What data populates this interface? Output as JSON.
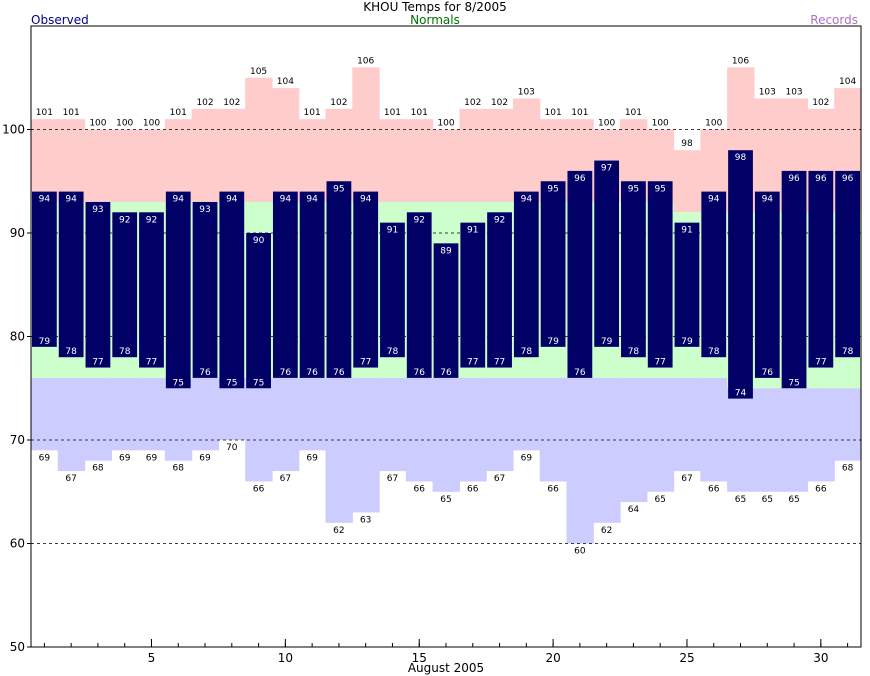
{
  "chart_data": {
    "type": "bar",
    "title": "KHOU Temps for 8/2005",
    "legend": {
      "observed": "Observed",
      "normals": "Normals",
      "records": "Records"
    },
    "xlabel": "August 2005",
    "ylabel": "",
    "ylim": [
      50,
      110
    ],
    "yticks": [
      50,
      60,
      70,
      80,
      90,
      100
    ],
    "xlim": [
      0.5,
      31.5
    ],
    "xticks": [
      5,
      10,
      15,
      20,
      25,
      30
    ],
    "grid": "dashed horizontal at 60, 70, 80, 90, 100",
    "days": [
      1,
      2,
      3,
      4,
      5,
      6,
      7,
      8,
      9,
      10,
      11,
      12,
      13,
      14,
      15,
      16,
      17,
      18,
      19,
      20,
      21,
      22,
      23,
      24,
      25,
      26,
      27,
      28,
      29,
      30,
      31
    ],
    "observed_high": [
      94,
      94,
      93,
      92,
      92,
      94,
      93,
      94,
      90,
      94,
      94,
      95,
      94,
      91,
      92,
      89,
      91,
      92,
      94,
      95,
      96,
      97,
      95,
      95,
      91,
      94,
      98,
      94,
      96,
      96,
      96
    ],
    "observed_low": [
      79,
      78,
      77,
      78,
      77,
      75,
      76,
      75,
      75,
      76,
      76,
      76,
      77,
      78,
      76,
      76,
      77,
      77,
      78,
      79,
      76,
      79,
      78,
      77,
      79,
      78,
      74,
      76,
      75,
      77,
      78
    ],
    "normal_high": [
      93,
      93,
      93,
      93,
      93,
      93,
      93,
      93,
      93,
      93,
      93,
      93,
      93,
      93,
      93,
      93,
      93,
      93,
      93,
      93,
      93,
      93,
      93,
      93,
      92,
      92,
      92,
      92,
      92,
      92,
      92
    ],
    "normal_low": [
      76,
      76,
      76,
      76,
      76,
      76,
      76,
      76,
      76,
      76,
      76,
      76,
      76,
      76,
      76,
      76,
      76,
      76,
      76,
      76,
      76,
      76,
      76,
      76,
      76,
      76,
      75,
      75,
      75,
      75,
      75
    ],
    "record_high": [
      101,
      101,
      100,
      100,
      100,
      101,
      102,
      102,
      105,
      104,
      101,
      102,
      106,
      101,
      101,
      100,
      102,
      102,
      103,
      101,
      101,
      100,
      101,
      100,
      98,
      100,
      106,
      103,
      103,
      102,
      104
    ],
    "record_low": [
      69,
      67,
      68,
      69,
      69,
      68,
      69,
      70,
      66,
      67,
      69,
      62,
      63,
      67,
      66,
      65,
      66,
      67,
      69,
      66,
      60,
      62,
      64,
      65,
      67,
      66,
      65,
      65,
      65,
      66,
      68
    ],
    "colors": {
      "observed": "#000066",
      "normals": "#ccffcc",
      "record_high": "#ffcccc",
      "record_low": "#ccccff",
      "observed_label": "#00008b",
      "normals_label": "#007000",
      "records_label": "#b070c8"
    }
  }
}
